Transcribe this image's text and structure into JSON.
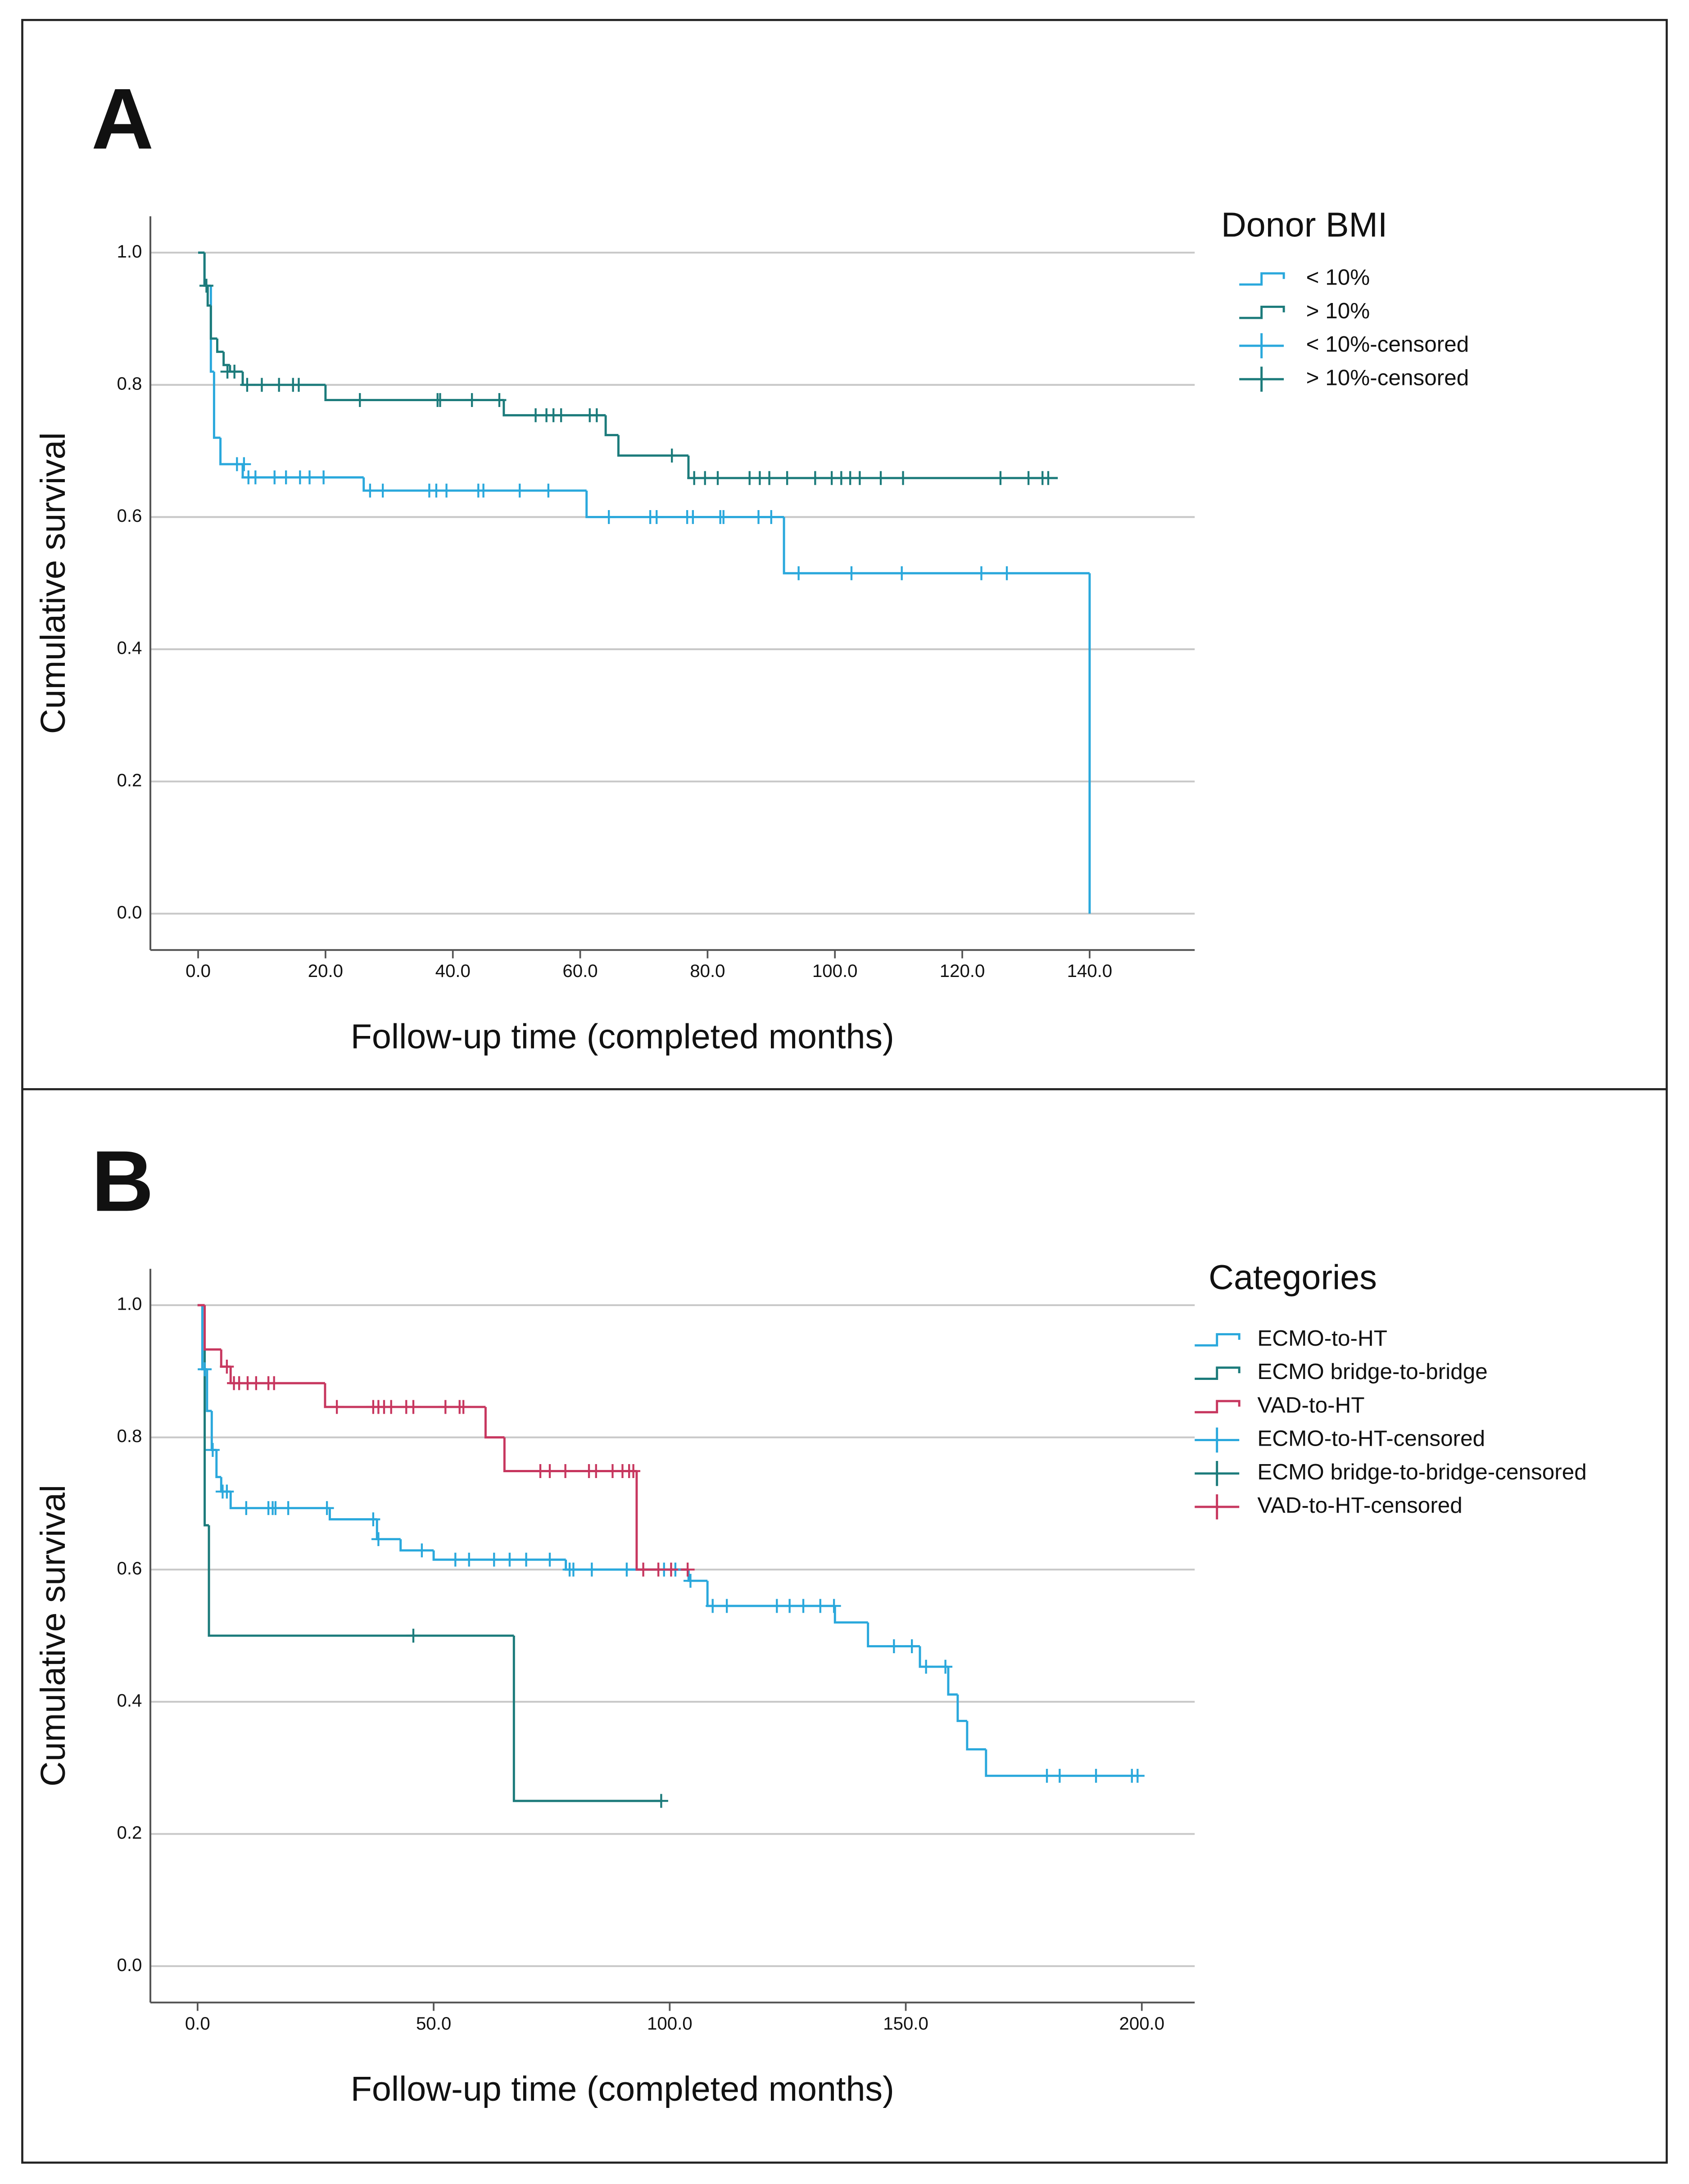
{
  "chart_data": [
    {
      "type": "step",
      "panel_label": "A",
      "legend_title": "Donor BMI",
      "x_label": "Follow-up time (completed months)",
      "y_label": "Cumulative survival",
      "xlim": [
        -7.5,
        156.5
      ],
      "ylim": [
        -0.055,
        1.055
      ],
      "xticks": [
        {
          "value": 0,
          "label": "0.0"
        },
        {
          "value": 20,
          "label": "20.0"
        },
        {
          "value": 40,
          "label": "40.0"
        },
        {
          "value": 60,
          "label": "60.0"
        },
        {
          "value": 80,
          "label": "80.0"
        },
        {
          "value": 100,
          "label": "100.0"
        },
        {
          "value": 120,
          "label": "120.0"
        },
        {
          "value": 140,
          "label": "140.0"
        }
      ],
      "yticks": [
        {
          "value": 0,
          "label": "0.0"
        },
        {
          "value": 0.2,
          "label": "0.2"
        },
        {
          "value": 0.4,
          "label": "0.4"
        },
        {
          "value": 0.6,
          "label": "0.6"
        },
        {
          "value": 0.8,
          "label": "0.8"
        },
        {
          "value": 1,
          "label": "1.0"
        }
      ],
      "grid": true,
      "series": [
        {
          "name": "< 10%",
          "color": "#2aa8dc",
          "mark": "line",
          "x": [
            0,
            1,
            2,
            2.5,
            3.5,
            7,
            26,
            61,
            92,
            140
          ],
          "values": [
            1.0,
            0.95,
            0.82,
            0.72,
            0.68,
            0.66,
            0.64,
            0.6,
            0.515,
            0
          ]
        },
        {
          "name": "> 10%",
          "color": "#1c7b7b",
          "mark": "line",
          "x": [
            0,
            1,
            1.5,
            2,
            3,
            4,
            5,
            7,
            20,
            48,
            64,
            66,
            77,
            135
          ],
          "values": [
            1.0,
            0.95,
            0.92,
            0.87,
            0.85,
            0.83,
            0.82,
            0.8,
            0.777,
            0.754,
            0.724,
            0.693,
            0.659,
            0.659
          ]
        },
        {
          "name": "< 10%-censored",
          "color": "#2aa8dc",
          "mark": "plus",
          "x": [
            6.1,
            7.2,
            7.9,
            9,
            12,
            13.8,
            16,
            17.5,
            19.7,
            27,
            29,
            36.3,
            37.4,
            39,
            44,
            44.8,
            50.5,
            55,
            64.5,
            71,
            72,
            76.8,
            77.7,
            82,
            82.5,
            88,
            90,
            94.3,
            102.6,
            110.5,
            123,
            127
          ],
          "values": [
            0.68,
            0.68,
            0.66,
            0.66,
            0.66,
            0.66,
            0.66,
            0.66,
            0.66,
            0.64,
            0.64,
            0.64,
            0.64,
            0.64,
            0.64,
            0.64,
            0.64,
            0.64,
            0.6,
            0.6,
            0.6,
            0.6,
            0.6,
            0.6,
            0.6,
            0.6,
            0.6,
            0.515,
            0.515,
            0.515,
            0.515,
            0.515
          ]
        },
        {
          "name": "> 10%-censored",
          "color": "#1c7b7b",
          "mark": "plus",
          "x": [
            1.3,
            4.6,
            5.7,
            7.7,
            10,
            12.7,
            14.9,
            15.8,
            25.4,
            37.6,
            38,
            43,
            47.3,
            53,
            54.7,
            55.8,
            57,
            61.5,
            62.6,
            74.4,
            77.9,
            79.6,
            81.6,
            86.6,
            88.2,
            89.7,
            92.5,
            96.9,
            99.5,
            101,
            102.4,
            103.9,
            107.2,
            110.7,
            126,
            130.4,
            132.6,
            133.5
          ],
          "values": [
            0.95,
            0.82,
            0.82,
            0.8,
            0.8,
            0.8,
            0.8,
            0.8,
            0.777,
            0.777,
            0.777,
            0.777,
            0.777,
            0.754,
            0.754,
            0.754,
            0.754,
            0.754,
            0.754,
            0.693,
            0.659,
            0.659,
            0.659,
            0.659,
            0.659,
            0.659,
            0.659,
            0.659,
            0.659,
            0.659,
            0.659,
            0.659,
            0.659,
            0.659,
            0.659,
            0.659,
            0.659,
            0.659
          ]
        }
      ]
    },
    {
      "type": "step",
      "panel_label": "B",
      "legend_title": "Categories",
      "x_label": "Follow-up time (completed months)",
      "y_label": "Cumulative survival",
      "xlim": [
        -10,
        211.2
      ],
      "ylim": [
        -0.055,
        1.055
      ],
      "xticks": [
        {
          "value": 0,
          "label": "0.0"
        },
        {
          "value": 50,
          "label": "50.0"
        },
        {
          "value": 100,
          "label": "100.0"
        },
        {
          "value": 150,
          "label": "150.0"
        },
        {
          "value": 200,
          "label": "200.0"
        }
      ],
      "yticks": [
        {
          "value": 0,
          "label": "0.0"
        },
        {
          "value": 0.2,
          "label": "0.2"
        },
        {
          "value": 0.4,
          "label": "0.4"
        },
        {
          "value": 0.6,
          "label": "0.6"
        },
        {
          "value": 0.8,
          "label": "0.8"
        },
        {
          "value": 1,
          "label": "1.0"
        }
      ],
      "grid": true,
      "series": [
        {
          "name": "ECMO-to-HT",
          "color": "#2aa8dc",
          "mark": "line",
          "x": [
            0,
            1,
            2,
            3,
            4,
            5,
            7,
            28,
            38,
            43,
            50,
            78,
            104,
            108,
            135,
            142,
            153,
            159,
            161,
            163,
            167,
            199
          ],
          "values": [
            1.0,
            0.903,
            0.84,
            0.781,
            0.74,
            0.718,
            0.693,
            0.676,
            0.646,
            0.629,
            0.615,
            0.6,
            0.583,
            0.545,
            0.52,
            0.484,
            0.453,
            0.411,
            0.371,
            0.328,
            0.288,
            0.288
          ]
        },
        {
          "name": "ECMO bridge-to-bridge",
          "color": "#1c7b7b",
          "mark": "line",
          "x": [
            0,
            1.5,
            2.4,
            67,
            98.2
          ],
          "values": [
            1.0,
            0.667,
            0.5,
            0.25,
            0.25
          ]
        },
        {
          "name": "VAD-to-HT",
          "color": "#c7375f",
          "mark": "line",
          "x": [
            0,
            1.5,
            5,
            7,
            27,
            61,
            65,
            93,
            103.8
          ],
          "values": [
            1.0,
            0.933,
            0.907,
            0.882,
            0.846,
            0.8,
            0.749,
            0.6,
            0.6
          ]
        },
        {
          "name": "ECMO-to-HT-censored",
          "color": "#2aa8dc",
          "mark": "plus",
          "x": [
            1.5,
            3.2,
            5.3,
            6.2,
            10.3,
            15,
            15.9,
            16.5,
            19.2,
            27.4,
            37.2,
            38.3,
            47.5,
            54.6,
            57.5,
            62.8,
            66.1,
            69.6,
            74.6,
            78.8,
            79.6,
            83.5,
            90.9,
            98.8,
            101.2,
            104.4,
            109.1,
            112.1,
            122.7,
            125.4,
            128.3,
            131.9,
            134.8,
            147.5,
            151.3,
            154.3,
            158.4,
            179.9,
            182.6,
            190.3,
            197.9,
            199.1
          ],
          "values": [
            0.903,
            0.781,
            0.718,
            0.718,
            0.693,
            0.693,
            0.693,
            0.693,
            0.693,
            0.693,
            0.676,
            0.646,
            0.629,
            0.615,
            0.615,
            0.615,
            0.615,
            0.615,
            0.615,
            0.6,
            0.6,
            0.6,
            0.6,
            0.6,
            0.6,
            0.583,
            0.545,
            0.545,
            0.545,
            0.545,
            0.545,
            0.545,
            0.545,
            0.484,
            0.484,
            0.453,
            0.453,
            0.288,
            0.288,
            0.288,
            0.288,
            0.288
          ]
        },
        {
          "name": "ECMO bridge-to-bridge-censored",
          "color": "#1c7b7b",
          "mark": "plus",
          "x": [
            45.7,
            98.2
          ],
          "values": [
            0.5,
            0.25
          ]
        },
        {
          "name": "VAD-to-HT-censored",
          "color": "#c7375f",
          "mark": "plus",
          "x": [
            6.2,
            7.7,
            8.8,
            10.6,
            12.4,
            15,
            16.2,
            29.5,
            37.2,
            38.3,
            39.5,
            41,
            44.2,
            45.7,
            52.5,
            55.5,
            56.3,
            72.6,
            74.6,
            77.9,
            82.9,
            84.4,
            87.9,
            90,
            91.4,
            92.3,
            94.4,
            97.6,
            100.3,
            103.8
          ],
          "values": [
            0.907,
            0.882,
            0.882,
            0.882,
            0.882,
            0.882,
            0.882,
            0.846,
            0.846,
            0.846,
            0.846,
            0.846,
            0.846,
            0.846,
            0.846,
            0.846,
            0.846,
            0.749,
            0.749,
            0.749,
            0.749,
            0.749,
            0.749,
            0.749,
            0.749,
            0.749,
            0.6,
            0.6,
            0.6,
            0.6
          ]
        }
      ]
    }
  ]
}
